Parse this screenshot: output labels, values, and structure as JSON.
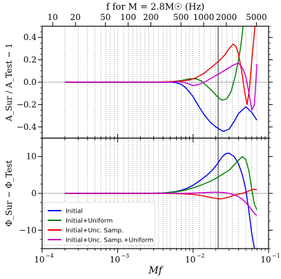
{
  "chart_data": {
    "type": "line",
    "top_axis": {
      "label": "f for M = 2.8M☉ (Hz)",
      "ticks": [
        10,
        20,
        50,
        100,
        200,
        500,
        1000,
        2000,
        5000
      ]
    },
    "x_axis": {
      "label": "Mf",
      "scale": "log",
      "range": [
        0.0001,
        0.1
      ],
      "ticks": [
        {
          "value": 0.0001,
          "base": "10",
          "exp": "−4"
        },
        {
          "value": 0.001,
          "base": "10",
          "exp": "−3"
        },
        {
          "value": 0.01,
          "base": "10",
          "exp": "−2"
        },
        {
          "value": 0.1,
          "base": "10",
          "exp": "−1"
        }
      ]
    },
    "vertical_line_x": 0.0215,
    "grid_x_lines": [
      0.0002,
      0.0003,
      0.0004,
      0.0005,
      0.0006,
      0.0007,
      0.0008,
      0.0009,
      0.001,
      0.0012,
      0.0014,
      0.0016,
      0.0018,
      0.002,
      0.0023,
      0.0026,
      0.003,
      0.0035,
      0.004,
      0.0045,
      0.005,
      0.006,
      0.007,
      0.008,
      0.009,
      0.01,
      0.012,
      0.014,
      0.017,
      0.02,
      0.024,
      0.028,
      0.033,
      0.04,
      0.05,
      0.06,
      0.07
    ],
    "panels": [
      {
        "ylabel": "A_Sur / A_Test − 1",
        "ylim": [
          -0.5,
          0.5
        ],
        "yticks": [
          -0.4,
          -0.2,
          0.0,
          0.2,
          0.4
        ],
        "yticklabels": [
          "−0.4",
          "−0.2",
          "0.0",
          "0.2",
          "0.4"
        ],
        "series": [
          {
            "name": "Initial",
            "color": "#0000ee",
            "points": [
              [
                0.0002,
                0
              ],
              [
                0.001,
                0
              ],
              [
                0.003,
                0
              ],
              [
                0.005,
                0
              ],
              [
                0.006,
                -0.005
              ],
              [
                0.007,
                -0.02
              ],
              [
                0.008,
                -0.05
              ],
              [
                0.009,
                -0.09
              ],
              [
                0.01,
                -0.13
              ],
              [
                0.012,
                -0.22
              ],
              [
                0.014,
                -0.29
              ],
              [
                0.017,
                -0.36
              ],
              [
                0.02,
                -0.4
              ],
              [
                0.025,
                -0.44
              ],
              [
                0.03,
                -0.42
              ],
              [
                0.035,
                -0.35
              ],
              [
                0.04,
                -0.28
              ],
              [
                0.05,
                -0.22
              ],
              [
                0.06,
                -0.27
              ],
              [
                0.07,
                -0.34
              ]
            ]
          },
          {
            "name": "Initial+Uniform",
            "color": "#008000",
            "points": [
              [
                0.0002,
                0
              ],
              [
                0.003,
                0
              ],
              [
                0.005,
                0.003
              ],
              [
                0.007,
                0.015
              ],
              [
                0.009,
                0.03
              ],
              [
                0.011,
                0.03
              ],
              [
                0.013,
                0.01
              ],
              [
                0.015,
                -0.03
              ],
              [
                0.018,
                -0.08
              ],
              [
                0.021,
                -0.13
              ],
              [
                0.024,
                -0.16
              ],
              [
                0.028,
                -0.15
              ],
              [
                0.032,
                -0.08
              ],
              [
                0.036,
                0.05
              ],
              [
                0.04,
                0.2
              ],
              [
                0.043,
                0.33
              ],
              [
                0.046,
                0.5
              ]
            ]
          },
          {
            "name": "Initial+Unc. Samp.",
            "color": "#ee0000",
            "points": [
              [
                0.0002,
                0
              ],
              [
                0.003,
                0
              ],
              [
                0.005,
                0.005
              ],
              [
                0.007,
                0.01
              ],
              [
                0.009,
                0.02
              ],
              [
                0.011,
                0.04
              ],
              [
                0.014,
                0.08
              ],
              [
                0.018,
                0.14
              ],
              [
                0.022,
                0.19
              ],
              [
                0.026,
                0.24
              ],
              [
                0.03,
                0.3
              ],
              [
                0.034,
                0.34
              ],
              [
                0.037,
                0.32
              ],
              [
                0.04,
                0.25
              ],
              [
                0.044,
                0.1
              ],
              [
                0.048,
                -0.08
              ],
              [
                0.052,
                -0.2
              ],
              [
                0.056,
                -0.05
              ],
              [
                0.06,
                0.2
              ],
              [
                0.064,
                0.4
              ],
              [
                0.066,
                0.5
              ]
            ]
          },
          {
            "name": "Initial+Unc. Samp.+Uniform",
            "color": "#cc00cc",
            "points": [
              [
                0.0002,
                0
              ],
              [
                0.003,
                0
              ],
              [
                0.005,
                0
              ],
              [
                0.006,
                0.005
              ],
              [
                0.007,
                0
              ],
              [
                0.008,
                -0.005
              ],
              [
                0.009,
                -0.02
              ],
              [
                0.01,
                -0.03
              ],
              [
                0.012,
                -0.02
              ],
              [
                0.015,
                0.01
              ],
              [
                0.019,
                0.05
              ],
              [
                0.024,
                0.09
              ],
              [
                0.03,
                0.13
              ],
              [
                0.036,
                0.16
              ],
              [
                0.04,
                0.17
              ],
              [
                0.045,
                0.13
              ],
              [
                0.05,
                0.05
              ],
              [
                0.055,
                -0.1
              ],
              [
                0.06,
                -0.25
              ],
              [
                0.065,
                -0.2
              ],
              [
                0.07,
                0.16
              ]
            ]
          }
        ]
      },
      {
        "ylabel": "Φ_Sur − Φ_Test",
        "ylim": [
          -15,
          15
        ],
        "yticks": [
          -10,
          0,
          10
        ],
        "yticklabels": [
          "−10",
          "0",
          "10"
        ],
        "series": [
          {
            "name": "Initial",
            "color": "#0000ee",
            "points": [
              [
                0.0002,
                0
              ],
              [
                0.002,
                0
              ],
              [
                0.004,
                0.1
              ],
              [
                0.006,
                0.5
              ],
              [
                0.008,
                1.2
              ],
              [
                0.01,
                2.2
              ],
              [
                0.012,
                3.3
              ],
              [
                0.015,
                4.8
              ],
              [
                0.018,
                6.3
              ],
              [
                0.021,
                8
              ],
              [
                0.024,
                9.8
              ],
              [
                0.027,
                10.8
              ],
              [
                0.03,
                10.9
              ],
              [
                0.035,
                10
              ],
              [
                0.04,
                8
              ],
              [
                0.045,
                5
              ],
              [
                0.05,
                1
              ],
              [
                0.055,
                -5
              ],
              [
                0.06,
                -11
              ],
              [
                0.065,
                -15
              ]
            ]
          },
          {
            "name": "Initial+Uniform",
            "color": "#008000",
            "points": [
              [
                0.0002,
                0
              ],
              [
                0.002,
                0
              ],
              [
                0.004,
                0.1
              ],
              [
                0.006,
                0.4
              ],
              [
                0.008,
                0.9
              ],
              [
                0.01,
                1.5
              ],
              [
                0.013,
                2.3
              ],
              [
                0.017,
                3.3
              ],
              [
                0.021,
                4.3
              ],
              [
                0.025,
                5.3
              ],
              [
                0.03,
                6.3
              ],
              [
                0.035,
                7.7
              ],
              [
                0.04,
                9
              ],
              [
                0.045,
                10
              ],
              [
                0.05,
                9.2
              ],
              [
                0.055,
                6
              ],
              [
                0.06,
                1
              ],
              [
                0.065,
                -3
              ],
              [
                0.07,
                -4.5
              ]
            ]
          },
          {
            "name": "Initial+Unc. Samp.",
            "color": "#ee0000",
            "points": [
              [
                0.0002,
                0
              ],
              [
                0.004,
                0
              ],
              [
                0.007,
                -0.1
              ],
              [
                0.01,
                -0.3
              ],
              [
                0.013,
                -0.6
              ],
              [
                0.016,
                -1
              ],
              [
                0.019,
                -1.3
              ],
              [
                0.022,
                -1.5
              ],
              [
                0.025,
                -1.4
              ],
              [
                0.03,
                -1
              ],
              [
                0.035,
                -0.5
              ],
              [
                0.04,
                -0.2
              ],
              [
                0.045,
                0
              ],
              [
                0.05,
                0.3
              ],
              [
                0.055,
                0.7
              ],
              [
                0.06,
                1
              ],
              [
                0.065,
                1.1
              ],
              [
                0.07,
                1
              ]
            ]
          },
          {
            "name": "Initial+Unc. Samp.+Uniform",
            "color": "#cc00cc",
            "points": [
              [
                0.0002,
                0
              ],
              [
                0.005,
                0
              ],
              [
                0.008,
                0
              ],
              [
                0.011,
                0.1
              ],
              [
                0.014,
                0.2
              ],
              [
                0.018,
                0.3
              ],
              [
                0.022,
                0.3
              ],
              [
                0.026,
                0.2
              ],
              [
                0.03,
                0
              ],
              [
                0.035,
                -0.4
              ],
              [
                0.04,
                -0.9
              ],
              [
                0.045,
                -1.6
              ],
              [
                0.05,
                -2.5
              ],
              [
                0.055,
                -3.5
              ],
              [
                0.06,
                -4.5
              ],
              [
                0.065,
                -5.5
              ],
              [
                0.07,
                -6
              ]
            ]
          }
        ]
      }
    ],
    "legend": {
      "placement": "lower-left of bottom panel",
      "entries": [
        "Initial",
        "Initial+Uniform",
        "Initial+Unc. Samp.",
        "Initial+Unc. Samp.+Uniform"
      ]
    }
  }
}
